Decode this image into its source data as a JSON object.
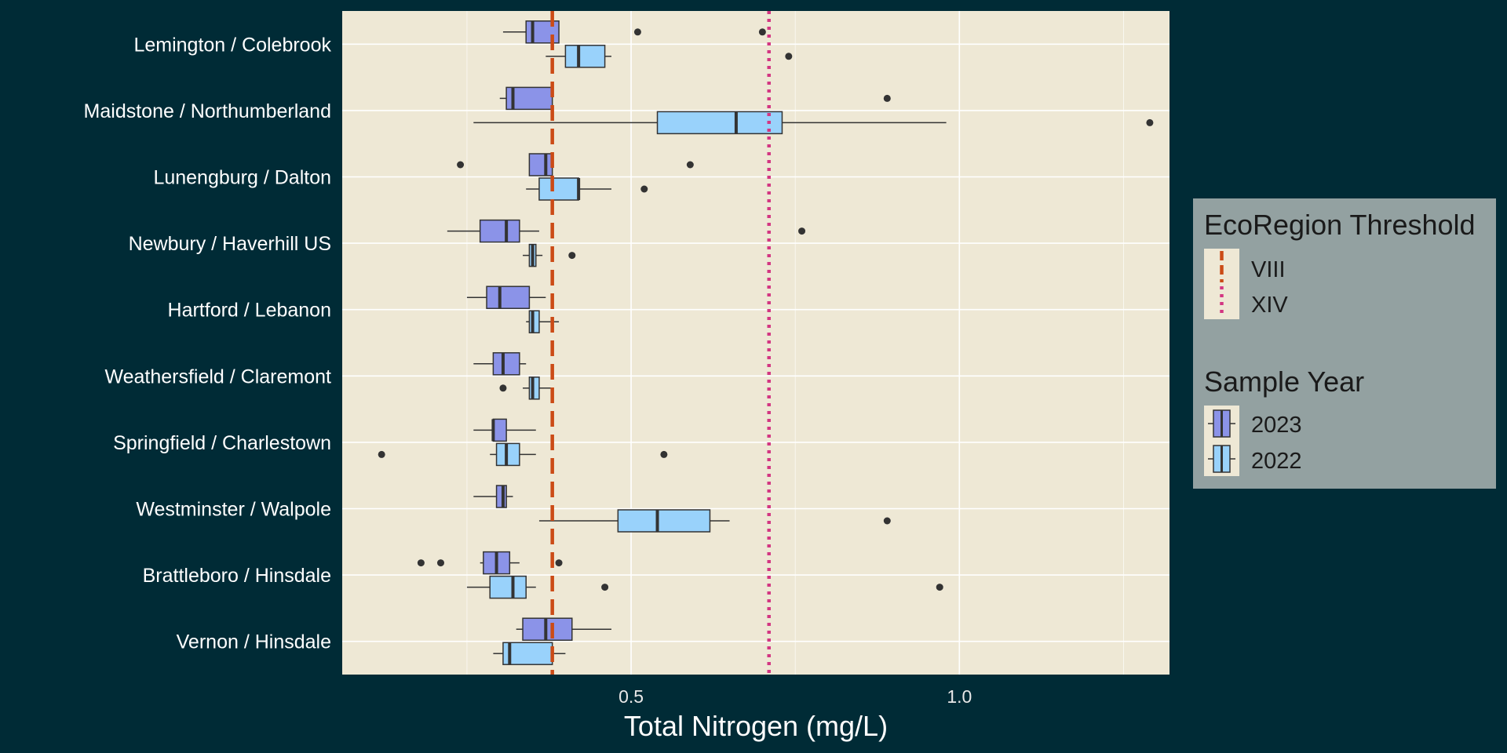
{
  "colors": {
    "background": "#002b36",
    "panel": "#eee8d5",
    "grid": "#ffffff",
    "fill_2023": "#8b93e8",
    "fill_2022": "#99d2fb",
    "threshold_VIII": "#cb4b16",
    "threshold_XIV": "#d33682",
    "legend_bg": "#93a1a1"
  },
  "chart_data": {
    "type": "boxplot",
    "orientation": "horizontal",
    "xlabel": "Total Nitrogen (mg/L)",
    "ylabel": "",
    "xlim": [
      0.06,
      1.32
    ],
    "xticks": [
      0.5,
      1.0
    ],
    "xtick_labels": [
      "0.5",
      "1.0"
    ],
    "grid": true,
    "categories": [
      "Lemington / Colebrook",
      "Maidstone / Northumberland",
      "Lunengburg / Dalton",
      "Newbury / Haverhill US",
      "Hartford / Lebanon",
      "Weathersfield / Claremont",
      "Springfield / Charlestown",
      "Westminster / Walpole",
      "Brattleboro / Hinsdale",
      "Vernon / Hinsdale"
    ],
    "thresholds": [
      {
        "name": "VIII",
        "value": 0.38,
        "style": "dashed"
      },
      {
        "name": "XIV",
        "value": 0.71,
        "style": "dotted"
      }
    ],
    "series": [
      {
        "name": "2023",
        "boxes": [
          {
            "min": 0.305,
            "q1": 0.34,
            "median": 0.35,
            "q3": 0.39,
            "max": 0.39,
            "outliers": [
              0.51,
              0.7
            ]
          },
          {
            "min": 0.3,
            "q1": 0.31,
            "median": 0.32,
            "q3": 0.38,
            "max": 0.38,
            "outliers": [
              0.89
            ]
          },
          {
            "min": 0.345,
            "q1": 0.345,
            "median": 0.37,
            "q3": 0.38,
            "max": 0.38,
            "outliers": [
              0.24,
              0.59
            ]
          },
          {
            "min": 0.22,
            "q1": 0.27,
            "median": 0.31,
            "q3": 0.33,
            "max": 0.36,
            "outliers": [
              0.76
            ]
          },
          {
            "min": 0.25,
            "q1": 0.28,
            "median": 0.3,
            "q3": 0.345,
            "max": 0.37,
            "outliers": []
          },
          {
            "min": 0.26,
            "q1": 0.29,
            "median": 0.305,
            "q3": 0.33,
            "max": 0.34,
            "outliers": []
          },
          {
            "min": 0.26,
            "q1": 0.29,
            "median": 0.29,
            "q3": 0.31,
            "max": 0.355,
            "outliers": []
          },
          {
            "min": 0.26,
            "q1": 0.295,
            "median": 0.305,
            "q3": 0.31,
            "max": 0.32,
            "outliers": []
          },
          {
            "min": 0.27,
            "q1": 0.275,
            "median": 0.295,
            "q3": 0.315,
            "max": 0.33,
            "outliers": [
              0.18,
              0.21,
              0.39
            ]
          },
          {
            "min": 0.325,
            "q1": 0.335,
            "median": 0.37,
            "q3": 0.41,
            "max": 0.47,
            "outliers": []
          }
        ]
      },
      {
        "name": "2022",
        "boxes": [
          {
            "min": 0.37,
            "q1": 0.4,
            "median": 0.42,
            "q3": 0.46,
            "max": 0.47,
            "outliers": [
              0.74
            ]
          },
          {
            "min": 0.26,
            "q1": 0.54,
            "median": 0.66,
            "q3": 0.73,
            "max": 0.98,
            "outliers": [
              1.29
            ]
          },
          {
            "min": 0.34,
            "q1": 0.36,
            "median": 0.42,
            "q3": 0.42,
            "max": 0.47,
            "outliers": [
              0.52
            ]
          },
          {
            "min": 0.335,
            "q1": 0.345,
            "median": 0.35,
            "q3": 0.355,
            "max": 0.365,
            "outliers": [
              0.41
            ]
          },
          {
            "min": 0.34,
            "q1": 0.345,
            "median": 0.35,
            "q3": 0.36,
            "max": 0.39,
            "outliers": []
          },
          {
            "min": 0.335,
            "q1": 0.345,
            "median": 0.35,
            "q3": 0.36,
            "max": 0.38,
            "outliers": [
              0.305
            ]
          },
          {
            "min": 0.285,
            "q1": 0.295,
            "median": 0.31,
            "q3": 0.33,
            "max": 0.355,
            "outliers": [
              0.12,
              0.55
            ]
          },
          {
            "min": 0.36,
            "q1": 0.48,
            "median": 0.54,
            "q3": 0.62,
            "max": 0.65,
            "outliers": [
              0.89
            ]
          },
          {
            "min": 0.25,
            "q1": 0.285,
            "median": 0.32,
            "q3": 0.34,
            "max": 0.355,
            "outliers": [
              0.46,
              0.97
            ]
          },
          {
            "min": 0.29,
            "q1": 0.305,
            "median": 0.315,
            "q3": 0.38,
            "max": 0.4,
            "outliers": []
          }
        ]
      }
    ],
    "legends": [
      {
        "title": "EcoRegion Threshold",
        "items": [
          "VIII",
          "XIV"
        ],
        "placement": "right"
      },
      {
        "title": "Sample Year",
        "items": [
          "2023",
          "2022"
        ],
        "placement": "right"
      }
    ]
  }
}
